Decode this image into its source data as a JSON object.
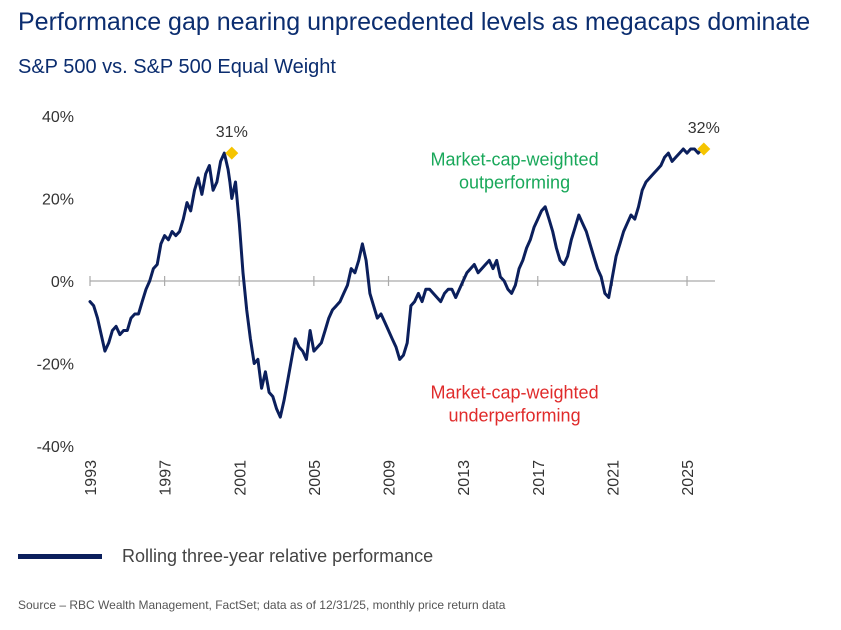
{
  "header": {
    "title": "Performance gap nearing unprecedented levels as megacaps dominate",
    "subtitle": "S&P 500 vs. S&P 500 Equal Weight"
  },
  "legend": {
    "label": "Rolling three-year relative performance"
  },
  "source": "Source – RBC Wealth Management, FactSet; data as of 12/31/25, monthly price return data",
  "colors": {
    "line": "#0b1f5c",
    "highlight": "#f5c400",
    "over_annotation": "#19a85a",
    "under_annotation": "#e02b2b",
    "zero_line": "#aaaaaa"
  },
  "chart_data": {
    "type": "line",
    "title": "Performance gap nearing unprecedented levels as megacaps dominate",
    "subtitle": "S&P 500 vs. S&P 500 Equal Weight",
    "xlabel": "",
    "ylabel": "",
    "xlim": [
      1993,
      2026.5
    ],
    "ylim": [
      -40,
      40
    ],
    "x_ticks": [
      1993,
      1997,
      2001,
      2005,
      2009,
      2013,
      2017,
      2021,
      2025
    ],
    "x_tick_labels": [
      "1993",
      "1997",
      "2001",
      "2005",
      "2009",
      "2013",
      "2017",
      "2021",
      "2025"
    ],
    "y_ticks": [
      -40,
      -20,
      0,
      20,
      40
    ],
    "y_tick_labels": [
      "-40%",
      "-20%",
      "0%",
      "20%",
      "40%"
    ],
    "grid": false,
    "legend_position": "bottom-left",
    "series": [
      {
        "name": "Rolling three-year relative performance",
        "x": [
          1993.0,
          1993.2,
          1993.4,
          1993.6,
          1993.8,
          1994.0,
          1994.2,
          1994.4,
          1994.6,
          1994.8,
          1995.0,
          1995.2,
          1995.4,
          1995.6,
          1995.8,
          1996.0,
          1996.2,
          1996.4,
          1996.6,
          1996.8,
          1997.0,
          1997.2,
          1997.4,
          1997.6,
          1997.8,
          1998.0,
          1998.2,
          1998.4,
          1998.6,
          1998.8,
          1999.0,
          1999.2,
          1999.4,
          1999.6,
          1999.8,
          2000.0,
          2000.2,
          2000.4,
          2000.5,
          2000.6,
          2000.8,
          2001.0,
          2001.2,
          2001.4,
          2001.6,
          2001.8,
          2002.0,
          2002.2,
          2002.4,
          2002.6,
          2002.8,
          2003.0,
          2003.2,
          2003.4,
          2003.6,
          2003.8,
          2004.0,
          2004.2,
          2004.4,
          2004.6,
          2004.8,
          2005.0,
          2005.2,
          2005.4,
          2005.6,
          2005.8,
          2006.0,
          2006.2,
          2006.4,
          2006.6,
          2006.8,
          2007.0,
          2007.2,
          2007.4,
          2007.6,
          2007.8,
          2008.0,
          2008.2,
          2008.4,
          2008.6,
          2008.8,
          2009.0,
          2009.2,
          2009.4,
          2009.6,
          2009.8,
          2010.0,
          2010.2,
          2010.4,
          2010.6,
          2010.8,
          2011.0,
          2011.2,
          2011.4,
          2011.6,
          2011.8,
          2012.0,
          2012.2,
          2012.4,
          2012.6,
          2012.8,
          2013.0,
          2013.2,
          2013.4,
          2013.6,
          2013.8,
          2014.0,
          2014.2,
          2014.4,
          2014.6,
          2014.8,
          2015.0,
          2015.2,
          2015.4,
          2015.6,
          2015.8,
          2016.0,
          2016.2,
          2016.4,
          2016.6,
          2016.8,
          2017.0,
          2017.2,
          2017.4,
          2017.6,
          2017.8,
          2018.0,
          2018.2,
          2018.4,
          2018.6,
          2018.8,
          2019.0,
          2019.2,
          2019.4,
          2019.6,
          2019.8,
          2020.0,
          2020.2,
          2020.4,
          2020.6,
          2020.8,
          2021.0,
          2021.2,
          2021.4,
          2021.6,
          2021.8,
          2022.0,
          2022.2,
          2022.4,
          2022.6,
          2022.8,
          2023.0,
          2023.2,
          2023.4,
          2023.6,
          2023.8,
          2024.0,
          2024.2,
          2024.4,
          2024.6,
          2024.8,
          2025.0,
          2025.2,
          2025.4,
          2025.6,
          2025.8,
          2026.0
        ],
        "values": [
          -5,
          -6,
          -9,
          -13,
          -17,
          -15,
          -12,
          -11,
          -13,
          -12,
          -12,
          -9,
          -8,
          -8,
          -5,
          -2,
          0,
          3,
          4,
          9,
          11,
          10,
          12,
          11,
          12,
          15,
          19,
          17,
          22,
          25,
          21,
          26,
          28,
          22,
          24,
          29,
          31,
          27,
          24,
          20,
          24,
          14,
          2,
          -7,
          -14,
          -20,
          -19,
          -26,
          -22,
          -27,
          -28,
          -31,
          -33,
          -29,
          -24,
          -19,
          -14,
          -16,
          -17,
          -19,
          -12,
          -17,
          -16,
          -15,
          -12,
          -9,
          -7,
          -6,
          -5,
          -3,
          -1,
          3,
          2,
          5,
          9,
          5,
          -3,
          -6,
          -9,
          -8,
          -10,
          -12,
          -14,
          -16,
          -19,
          -18,
          -15,
          -6,
          -5,
          -3,
          -5,
          -2,
          -2,
          -3,
          -4,
          -5,
          -3,
          -2,
          -2,
          -4,
          -2,
          0,
          2,
          3,
          4,
          2,
          3,
          4,
          5,
          3,
          5,
          1,
          0,
          -2,
          -3,
          -1,
          3,
          5,
          8,
          10,
          13,
          15,
          17,
          18,
          15,
          12,
          8,
          5,
          4,
          6,
          10,
          13,
          16,
          14,
          12,
          9,
          6,
          3,
          1,
          -3,
          -4,
          1,
          6,
          9,
          12,
          14,
          16,
          15,
          18,
          22,
          24,
          25,
          26,
          27,
          28,
          30,
          31,
          29,
          30,
          31,
          32,
          31,
          32,
          32,
          31,
          32,
          32
        ]
      }
    ],
    "highlights": [
      {
        "x": 2000.6,
        "y": 31,
        "label": "31%"
      },
      {
        "x": 2025.9,
        "y": 32,
        "label": "32%"
      }
    ],
    "annotations": [
      {
        "lines": [
          "Market-cap-weighted",
          "outperforming"
        ],
        "x": 2017.9,
        "y": 28,
        "color_key": "over_annotation"
      },
      {
        "lines": [
          "Market-cap-weighted",
          "underperforming"
        ],
        "x": 2017.9,
        "y": -28.5,
        "color_key": "under_annotation"
      }
    ]
  }
}
